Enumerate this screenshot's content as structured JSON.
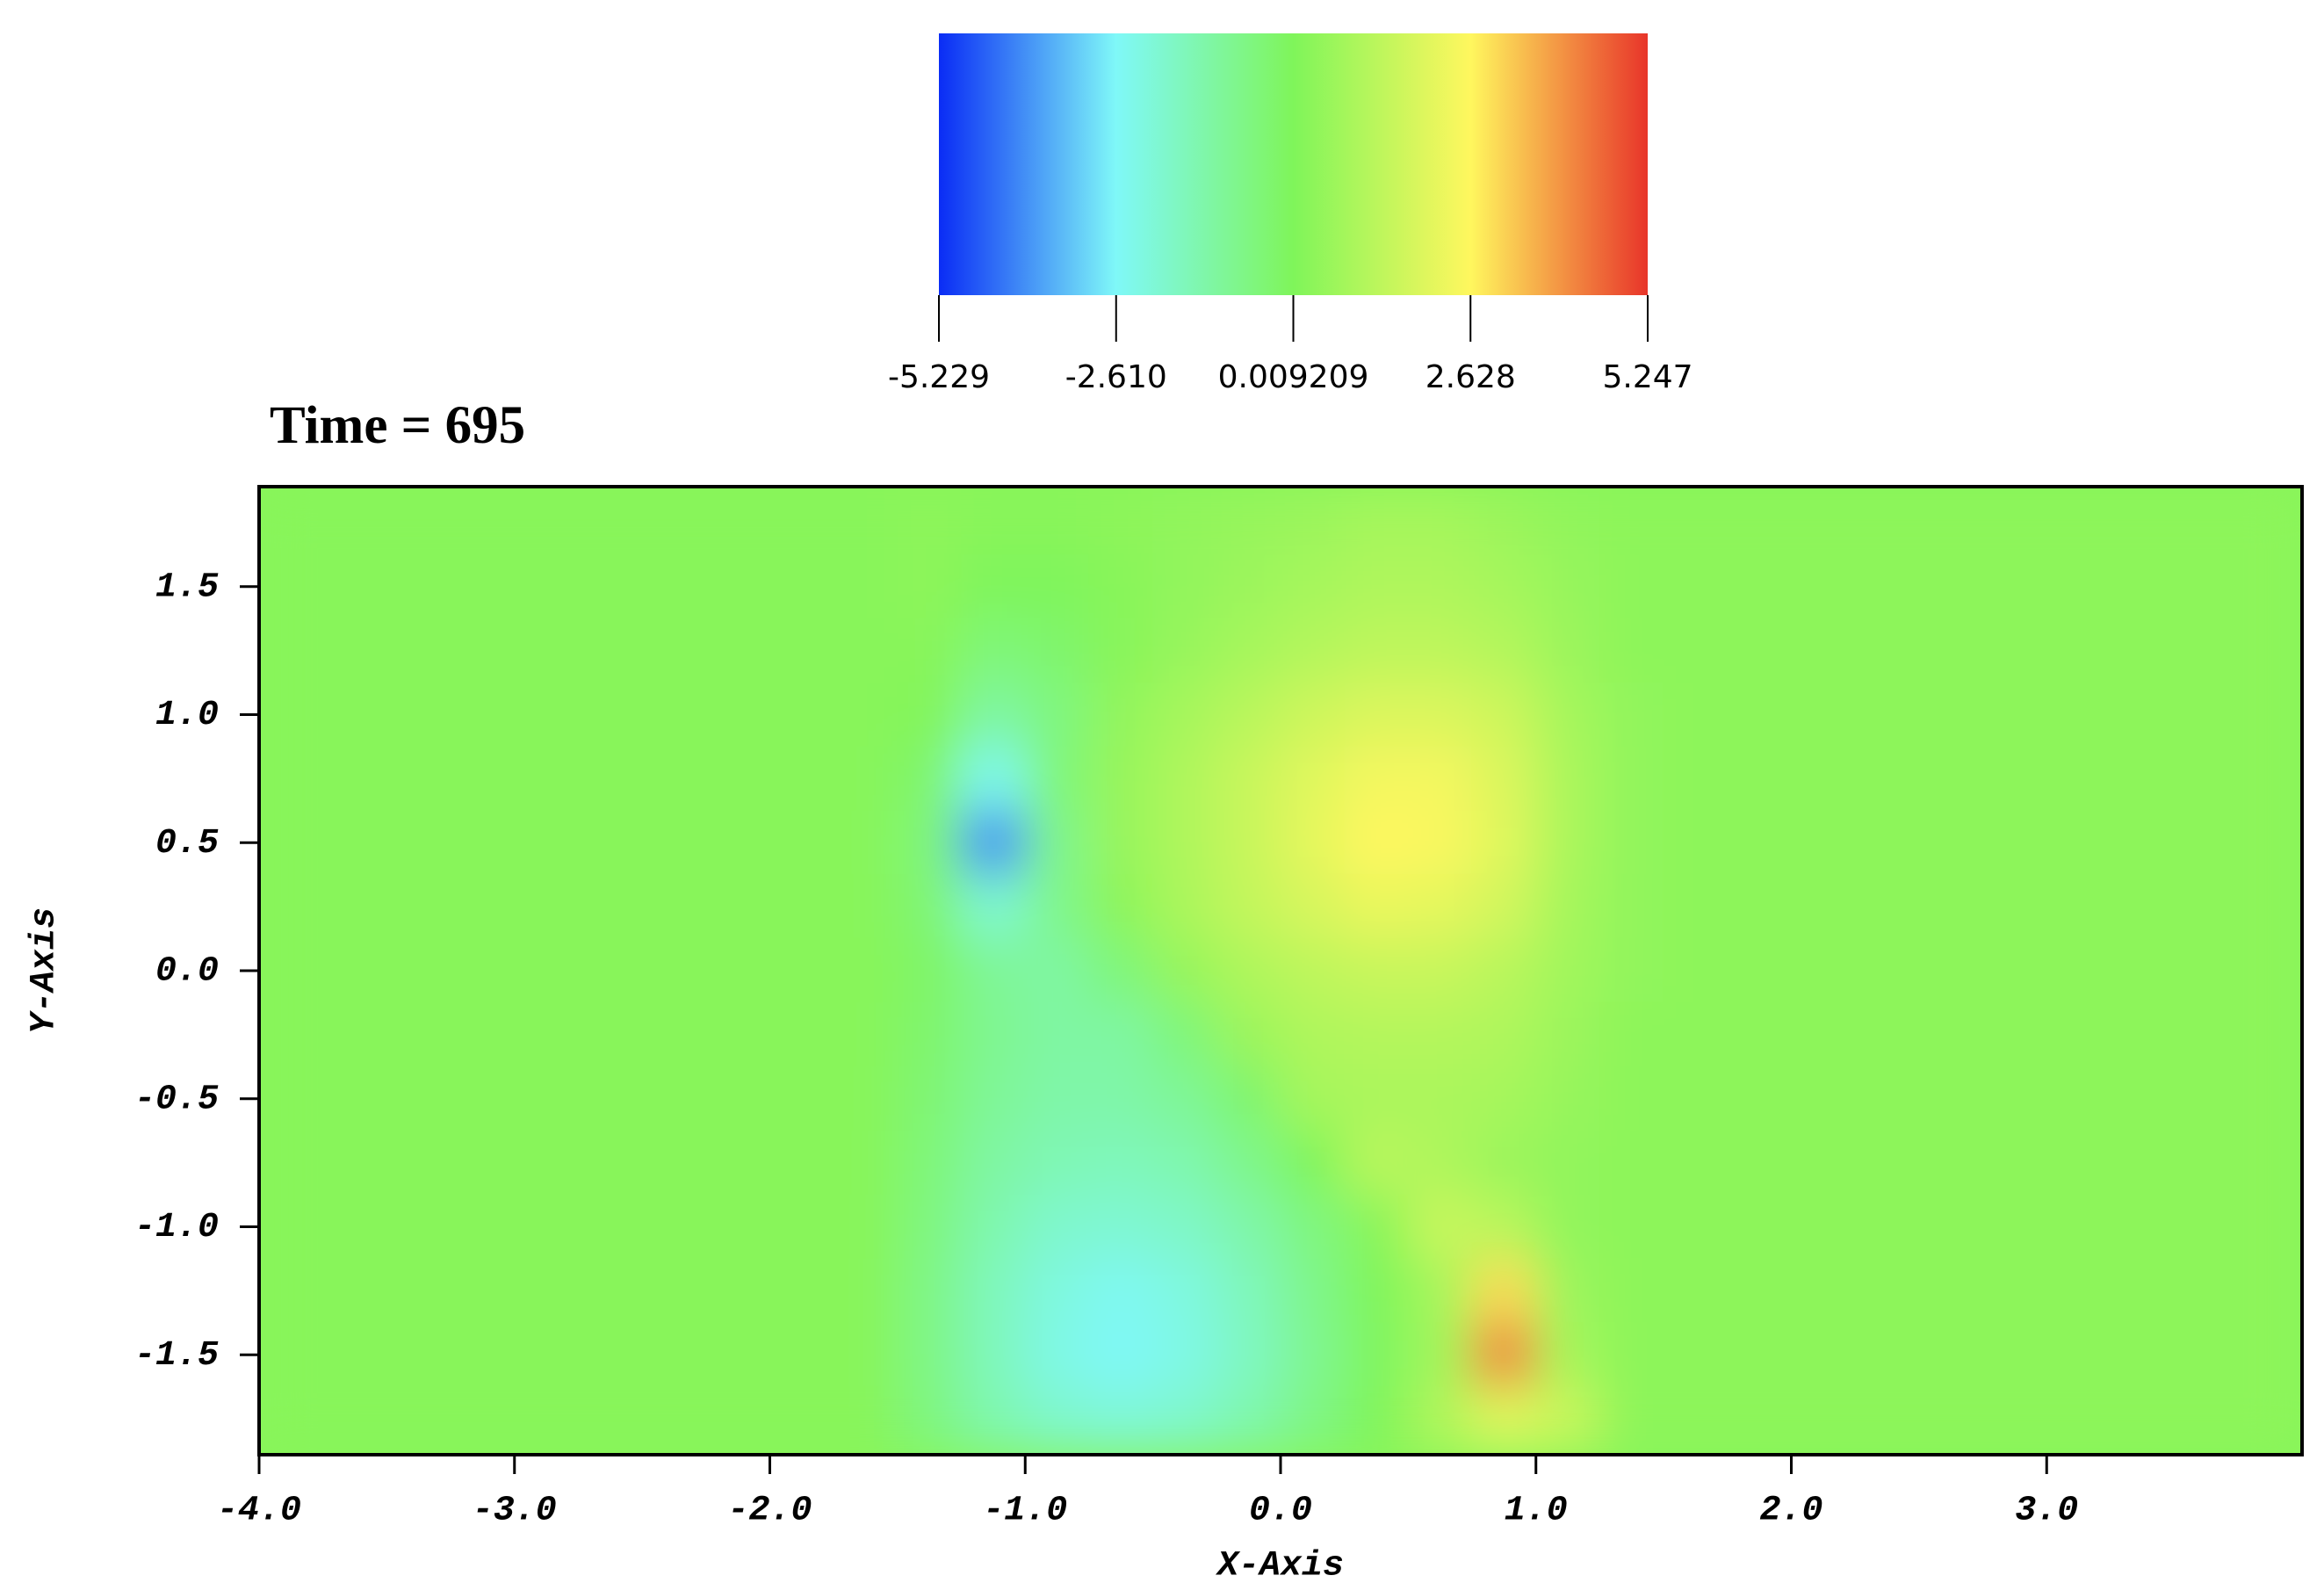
{
  "chart_data": {
    "type": "heatmap",
    "title": "Time = 695",
    "x_label": "X-Axis",
    "y_label": "Y-Axis",
    "xlim": [
      -4,
      4
    ],
    "ylim": [
      -1.89,
      1.89
    ],
    "xticks": [
      {
        "value": -4,
        "label": "-4.0"
      },
      {
        "value": -3,
        "label": "-3.0"
      },
      {
        "value": -2,
        "label": "-2.0"
      },
      {
        "value": -1,
        "label": "-1.0"
      },
      {
        "value": 0,
        "label": "0.0"
      },
      {
        "value": 1,
        "label": "1.0"
      },
      {
        "value": 2,
        "label": "2.0"
      },
      {
        "value": 3,
        "label": "3.0"
      }
    ],
    "yticks": [
      1.5,
      {
        "value": 1,
        "label": "1.0"
      },
      0.5,
      {
        "value": 0,
        "label": "0.0"
      },
      -0.5,
      {
        "value": -1,
        "label": "-1.0"
      },
      -1.5
    ],
    "clim": [
      -5.229,
      5.247
    ],
    "colorbar_ticks": [
      -5.229,
      {
        "value": -2.61,
        "label": "-2.610"
      },
      0.009209,
      2.628,
      5.247
    ],
    "colormap": [
      "#0a2cf5",
      "#7ff8f8",
      "#7ff55a",
      "#fff75e",
      "#e8352a"
    ],
    "x": [
      -3.875,
      -3.625,
      -3.375,
      -3.125,
      -2.875,
      -2.625,
      -2.375,
      -2.125,
      -1.875,
      -1.625,
      -1.375,
      -1.125,
      -0.875,
      -0.625,
      -0.375,
      -0.125,
      0.125,
      0.375,
      0.625,
      0.875,
      1.125,
      1.375,
      1.625,
      1.875,
      2.125,
      2.375,
      2.625,
      2.875,
      3.125,
      3.375,
      3.625,
      3.875
    ],
    "y": [
      1.75,
      1.5,
      1.25,
      1.0,
      0.75,
      0.5,
      0.25,
      0,
      -0.25,
      -0.5,
      -0.75,
      -1.0,
      -1.25,
      -1.5,
      -1.75
    ],
    "z": [
      [
        0.2,
        0.2,
        0.2,
        0.2,
        0.2,
        0.2,
        0.2,
        0.2,
        0.2,
        0.2,
        0.3,
        0.2,
        0.2,
        0.3,
        0.4,
        0.5,
        0.6,
        0.8,
        0.8,
        0.6,
        0.4,
        0.3,
        0.3,
        0.3,
        0.3,
        0.3,
        0.3,
        0.3,
        0.3,
        0.3,
        0.3,
        0.3
      ],
      [
        0.2,
        0.2,
        0.2,
        0.2,
        0.2,
        0.2,
        0.2,
        0.2,
        0.2,
        0.2,
        0.3,
        0.0,
        0.0,
        0.2,
        0.4,
        0.6,
        0.8,
        1.0,
        1.0,
        0.8,
        0.5,
        0.3,
        0.3,
        0.3,
        0.3,
        0.3,
        0.3,
        0.3,
        0.3,
        0.3,
        0.3,
        0.3
      ],
      [
        0.2,
        0.2,
        0.2,
        0.2,
        0.2,
        0.2,
        0.2,
        0.2,
        0.2,
        0.2,
        0.2,
        -0.5,
        -0.3,
        0.2,
        0.5,
        0.8,
        1.1,
        1.3,
        1.3,
        1.1,
        0.6,
        0.3,
        0.3,
        0.3,
        0.3,
        0.3,
        0.3,
        0.3,
        0.3,
        0.3,
        0.3,
        0.3
      ],
      [
        0.2,
        0.2,
        0.2,
        0.2,
        0.2,
        0.2,
        0.2,
        0.2,
        0.2,
        0.2,
        0.1,
        -1.2,
        -0.6,
        0.4,
        0.8,
        1.2,
        1.6,
        1.9,
        1.9,
        1.6,
        0.8,
        0.4,
        0.3,
        0.3,
        0.3,
        0.3,
        0.3,
        0.3,
        0.3,
        0.3,
        0.3,
        0.3
      ],
      [
        0.2,
        0.2,
        0.2,
        0.2,
        0.2,
        0.2,
        0.2,
        0.2,
        0.2,
        0.2,
        -0.3,
        -2.5,
        -0.5,
        0.5,
        1.0,
        1.5,
        2.0,
        2.4,
        2.4,
        1.9,
        0.9,
        0.4,
        0.3,
        0.3,
        0.3,
        0.3,
        0.3,
        0.3,
        0.3,
        0.3,
        0.3,
        0.3
      ],
      [
        0.2,
        0.2,
        0.2,
        0.2,
        0.2,
        0.2,
        0.2,
        0.2,
        0.2,
        0.2,
        -0.5,
        -4.0,
        -0.8,
        0.5,
        1.0,
        1.5,
        2.1,
        2.6,
        2.5,
        2.0,
        0.9,
        0.4,
        0.3,
        0.3,
        0.3,
        0.3,
        0.3,
        0.3,
        0.3,
        0.3,
        0.3,
        0.3
      ],
      [
        0.2,
        0.2,
        0.2,
        0.2,
        0.2,
        0.2,
        0.2,
        0.2,
        0.2,
        0.2,
        -0.4,
        -2.0,
        -0.8,
        0.3,
        0.9,
        1.4,
        1.8,
        2.2,
        2.1,
        1.7,
        0.8,
        0.4,
        0.3,
        0.3,
        0.3,
        0.3,
        0.3,
        0.3,
        0.3,
        0.3,
        0.3,
        0.3
      ],
      [
        0.2,
        0.2,
        0.2,
        0.2,
        0.2,
        0.2,
        0.2,
        0.2,
        0.2,
        0.2,
        -0.2,
        -1.0,
        -1.2,
        -0.5,
        0.5,
        1.0,
        1.3,
        1.5,
        1.5,
        1.2,
        0.7,
        0.4,
        0.3,
        0.3,
        0.3,
        0.3,
        0.3,
        0.3,
        0.3,
        0.3,
        0.3,
        0.3
      ],
      [
        0.2,
        0.2,
        0.2,
        0.2,
        0.2,
        0.2,
        0.2,
        0.2,
        0.2,
        0.2,
        -0.3,
        -0.9,
        -1.2,
        -1.2,
        -0.5,
        0.6,
        1.0,
        1.1,
        1.1,
        1.0,
        0.6,
        0.3,
        0.3,
        0.3,
        0.3,
        0.3,
        0.3,
        0.3,
        0.3,
        0.3,
        0.3,
        0.3
      ],
      [
        0.2,
        0.2,
        0.2,
        0.2,
        0.2,
        0.2,
        0.2,
        0.2,
        0.2,
        0.2,
        -0.4,
        -1.0,
        -1.3,
        -1.3,
        -1.0,
        -0.3,
        0.8,
        0.9,
        0.9,
        0.8,
        0.5,
        0.3,
        0.3,
        0.3,
        0.3,
        0.3,
        0.3,
        0.3,
        0.3,
        0.3,
        0.3,
        0.3
      ],
      [
        0.2,
        0.2,
        0.2,
        0.2,
        0.2,
        0.2,
        0.2,
        0.2,
        0.2,
        0.2,
        -0.5,
        -1.2,
        -1.5,
        -1.6,
        -1.4,
        -0.8,
        0.0,
        1.2,
        1.0,
        0.6,
        0.4,
        0.3,
        0.3,
        0.3,
        0.3,
        0.3,
        0.3,
        0.3,
        0.3,
        0.3,
        0.3,
        0.3
      ],
      [
        0.2,
        0.2,
        0.2,
        0.2,
        0.2,
        0.2,
        0.2,
        0.2,
        0.2,
        0.2,
        -0.6,
        -1.4,
        -1.9,
        -2.0,
        -1.8,
        -1.3,
        -0.6,
        0.2,
        1.5,
        1.2,
        0.4,
        0.3,
        0.3,
        0.3,
        0.3,
        0.3,
        0.3,
        0.3,
        0.3,
        0.3,
        0.3,
        0.3
      ],
      [
        0.2,
        0.2,
        0.2,
        0.2,
        0.2,
        0.2,
        0.2,
        0.2,
        0.2,
        0.2,
        -0.7,
        -1.6,
        -2.2,
        -2.5,
        -2.2,
        -1.6,
        -0.8,
        0.0,
        0.8,
        3.0,
        0.6,
        0.3,
        0.3,
        0.3,
        0.3,
        0.3,
        0.3,
        0.3,
        0.3,
        0.3,
        0.3,
        0.3
      ],
      [
        0.2,
        0.2,
        0.2,
        0.2,
        0.2,
        0.2,
        0.2,
        0.2,
        0.2,
        0.2,
        -0.7,
        -1.6,
        -2.3,
        -2.6,
        -2.3,
        -1.7,
        -0.9,
        -0.1,
        0.7,
        4.2,
        0.8,
        0.3,
        0.3,
        0.3,
        0.3,
        0.3,
        0.3,
        0.3,
        0.3,
        0.3,
        0.3,
        0.3
      ],
      [
        0.2,
        0.2,
        0.2,
        0.2,
        0.2,
        0.2,
        0.2,
        0.2,
        0.2,
        0.2,
        -0.6,
        -1.4,
        -1.9,
        -2.1,
        -1.9,
        -1.4,
        -0.7,
        0.0,
        1.0,
        2.0,
        1.5,
        0.3,
        0.3,
        0.3,
        0.3,
        0.3,
        0.3,
        0.3,
        0.3,
        0.3,
        0.3,
        0.3
      ]
    ]
  }
}
